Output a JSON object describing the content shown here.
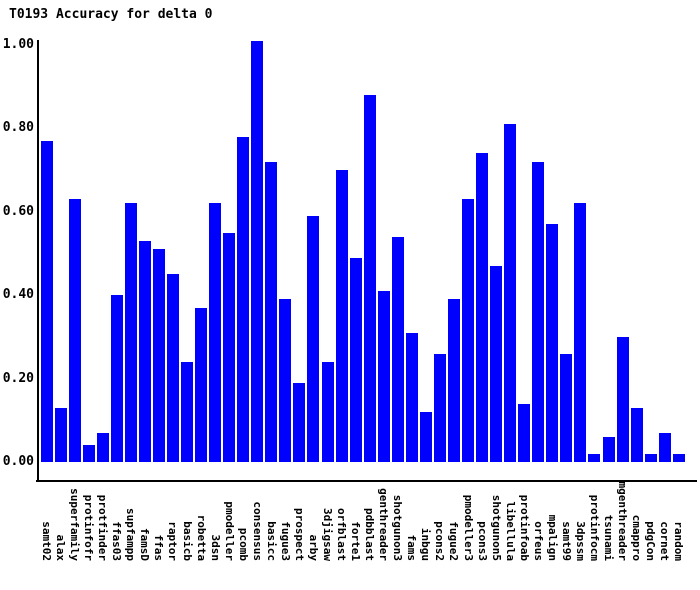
{
  "title": "T0193 Accuracy for delta 0",
  "colors": {
    "bar": "#0000ff",
    "axis": "#000000",
    "text": "#000000",
    "background": "#ffffff"
  },
  "chart_data": {
    "type": "bar",
    "title": "T0193 Accuracy for delta 0",
    "xlabel": "",
    "ylabel": "",
    "ylim": [
      0,
      1.0
    ],
    "yticks": [
      0.0,
      0.2,
      0.4,
      0.6,
      0.8,
      1.0
    ],
    "ytick_labels": [
      "0.00",
      "0.20",
      "0.40",
      "0.60",
      "0.80",
      "1.00"
    ],
    "grid": "off",
    "legend": "none",
    "bar_color": "#0000ff",
    "categories": [
      "samt02",
      "alax",
      "superfamily",
      "protinfofr",
      "protfinder",
      "ffas03",
      "supfampp",
      "famsD",
      "ffas",
      "raptor",
      "basicb",
      "robetta",
      "3dsn",
      "pmodeller",
      "pcomb",
      "consensus",
      "basicc",
      "fugue3",
      "prospect",
      "arby",
      "3djigsaw",
      "orfblast",
      "forte1",
      "pdbblast",
      "genthreader",
      "shotgunon3",
      "fams",
      "inbgu",
      "pcons2",
      "fugue2",
      "pmodeller3",
      "pcons3",
      "shotgunon5",
      "libellula",
      "protinfoab",
      "orfeus",
      "mpalign",
      "samt99",
      "3dpssm",
      "protinfocm",
      "tsunami",
      "mgenthreader",
      "cmappro",
      "pdgCon",
      "cornet",
      "random"
    ],
    "values": [
      0.77,
      0.13,
      0.63,
      0.04,
      0.07,
      0.4,
      0.62,
      0.53,
      0.51,
      0.45,
      0.24,
      0.37,
      0.62,
      0.55,
      0.78,
      1.01,
      0.72,
      0.39,
      0.19,
      0.59,
      0.24,
      0.7,
      0.49,
      0.88,
      0.41,
      0.54,
      0.31,
      0.12,
      0.26,
      0.39,
      0.63,
      0.74,
      0.47,
      0.81,
      0.14,
      0.72,
      0.57,
      0.26,
      0.62,
      0.02,
      0.06,
      0.3,
      0.13,
      0.02,
      0.07,
      0.02
    ]
  }
}
